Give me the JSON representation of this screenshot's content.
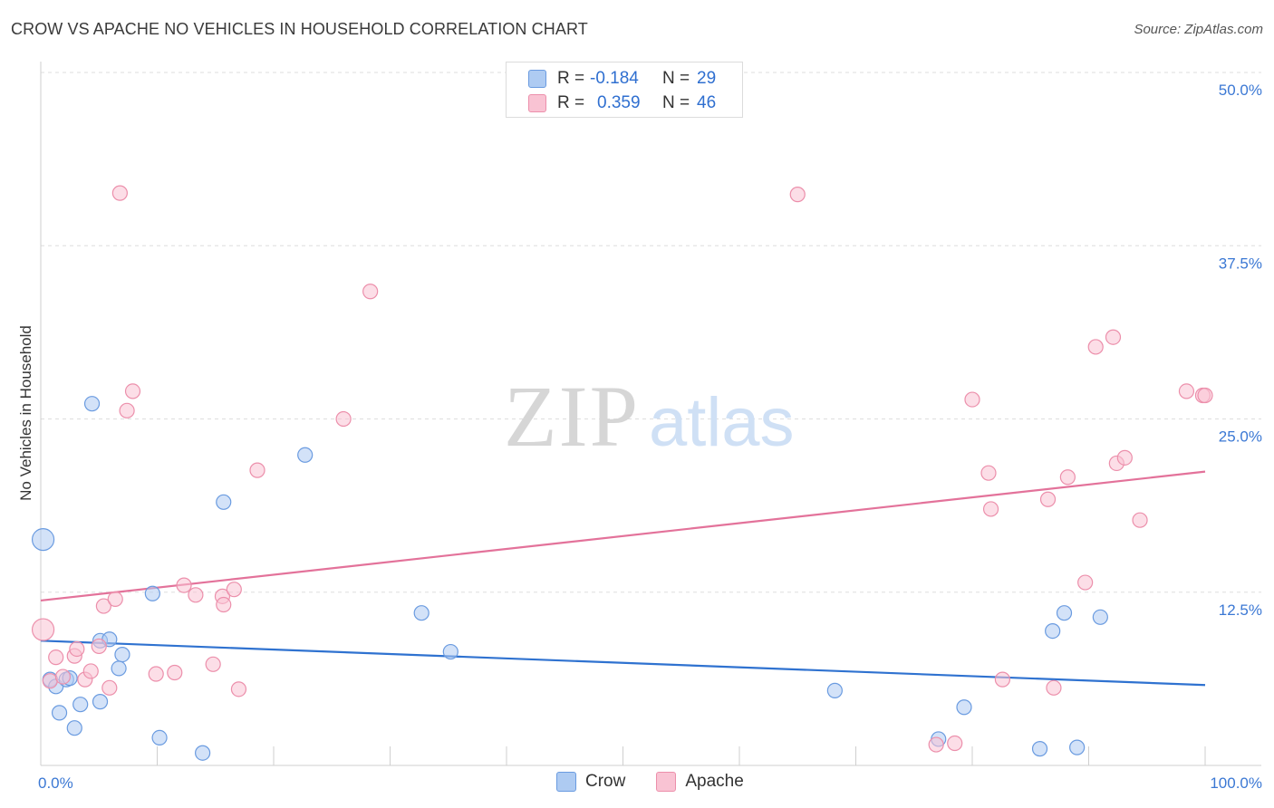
{
  "title": "CROW VS APACHE NO VEHICLES IN HOUSEHOLD CORRELATION CHART",
  "source": "Source: ZipAtlas.com",
  "watermark": {
    "zip": "ZIP",
    "atlas": "atlas"
  },
  "legend_top": {
    "rows": [
      {
        "series": "Crow",
        "r_label": "R =",
        "r_value": "-0.184",
        "n_label": "N =",
        "n_value": "29"
      },
      {
        "series": "Apache",
        "r_label": "R =",
        "r_value": "0.359",
        "n_label": "N =",
        "n_value": "46"
      }
    ]
  },
  "legend_bottom": {
    "crow": "Crow",
    "apache": "Apache"
  },
  "colors": {
    "crow_fill": "#aecbf2",
    "crow_stroke": "#6a9be0",
    "crow_line": "#2f72d0",
    "apache_fill": "#f9c3d3",
    "apache_stroke": "#ec8fab",
    "apache_line": "#e3729a",
    "tick_label": "#3b78d4",
    "grid": "#dedede"
  },
  "chart_data": {
    "type": "scatter",
    "title": "CROW VS APACHE NO VEHICLES IN HOUSEHOLD CORRELATION CHART",
    "xlabel": "",
    "ylabel": "No Vehicles in Household",
    "xlim": [
      0,
      100
    ],
    "ylim": [
      0,
      50
    ],
    "x_tick_labels": [
      "0.0%",
      "100.0%"
    ],
    "y_ticks": [
      12.5,
      25.0,
      37.5,
      50.0
    ],
    "y_tick_labels": [
      "12.5%",
      "25.0%",
      "37.5%",
      "50.0%"
    ],
    "grid": true,
    "legend": "top-center",
    "series": [
      {
        "name": "Crow",
        "r": -0.184,
        "n": 29,
        "trend": {
          "x": [
            0,
            100
          ],
          "y": [
            9.0,
            5.8
          ]
        },
        "points": [
          {
            "x": 0.2,
            "y": 16.3,
            "big": true
          },
          {
            "x": 0.8,
            "y": 6.2
          },
          {
            "x": 1.3,
            "y": 5.7
          },
          {
            "x": 1.6,
            "y": 3.8
          },
          {
            "x": 2.2,
            "y": 6.2
          },
          {
            "x": 2.5,
            "y": 6.3
          },
          {
            "x": 2.9,
            "y": 2.7
          },
          {
            "x": 3.4,
            "y": 4.4
          },
          {
            "x": 4.4,
            "y": 26.1
          },
          {
            "x": 5.1,
            "y": 4.6
          },
          {
            "x": 5.1,
            "y": 9.0
          },
          {
            "x": 5.9,
            "y": 9.1
          },
          {
            "x": 6.7,
            "y": 7.0
          },
          {
            "x": 7.0,
            "y": 8.0
          },
          {
            "x": 9.6,
            "y": 12.4
          },
          {
            "x": 10.2,
            "y": 2.0
          },
          {
            "x": 13.9,
            "y": 0.9
          },
          {
            "x": 15.7,
            "y": 19.0
          },
          {
            "x": 22.7,
            "y": 22.4
          },
          {
            "x": 32.7,
            "y": 11.0
          },
          {
            "x": 35.2,
            "y": 8.2
          },
          {
            "x": 68.2,
            "y": 5.4
          },
          {
            "x": 77.1,
            "y": 1.9
          },
          {
            "x": 79.3,
            "y": 4.2
          },
          {
            "x": 85.8,
            "y": 1.2
          },
          {
            "x": 86.9,
            "y": 9.7
          },
          {
            "x": 87.9,
            "y": 11.0
          },
          {
            "x": 89.0,
            "y": 1.3
          },
          {
            "x": 91.0,
            "y": 10.7
          }
        ]
      },
      {
        "name": "Apache",
        "r": 0.359,
        "n": 46,
        "trend": {
          "x": [
            0,
            100
          ],
          "y": [
            11.9,
            21.2
          ]
        },
        "points": [
          {
            "x": 0.2,
            "y": 9.8,
            "big": true
          },
          {
            "x": 0.8,
            "y": 6.1
          },
          {
            "x": 1.3,
            "y": 7.8
          },
          {
            "x": 1.9,
            "y": 6.4
          },
          {
            "x": 2.9,
            "y": 7.9
          },
          {
            "x": 3.1,
            "y": 8.4
          },
          {
            "x": 3.8,
            "y": 6.2
          },
          {
            "x": 4.3,
            "y": 6.8
          },
          {
            "x": 5.0,
            "y": 8.6
          },
          {
            "x": 5.4,
            "y": 11.5
          },
          {
            "x": 5.9,
            "y": 5.6
          },
          {
            "x": 6.4,
            "y": 12.0
          },
          {
            "x": 6.8,
            "y": 41.3
          },
          {
            "x": 7.4,
            "y": 25.6
          },
          {
            "x": 7.9,
            "y": 27.0
          },
          {
            "x": 9.9,
            "y": 6.6
          },
          {
            "x": 11.5,
            "y": 6.7
          },
          {
            "x": 12.3,
            "y": 13.0
          },
          {
            "x": 13.3,
            "y": 12.3
          },
          {
            "x": 14.8,
            "y": 7.3
          },
          {
            "x": 15.6,
            "y": 12.2
          },
          {
            "x": 15.7,
            "y": 11.6
          },
          {
            "x": 16.6,
            "y": 12.7
          },
          {
            "x": 17.0,
            "y": 5.5
          },
          {
            "x": 18.6,
            "y": 21.3
          },
          {
            "x": 26.0,
            "y": 25.0
          },
          {
            "x": 28.3,
            "y": 34.2
          },
          {
            "x": 65.0,
            "y": 41.2
          },
          {
            "x": 76.9,
            "y": 1.5
          },
          {
            "x": 78.5,
            "y": 1.6
          },
          {
            "x": 80.0,
            "y": 26.4
          },
          {
            "x": 81.4,
            "y": 21.1
          },
          {
            "x": 81.6,
            "y": 18.5
          },
          {
            "x": 82.6,
            "y": 6.2
          },
          {
            "x": 86.5,
            "y": 19.2
          },
          {
            "x": 87.0,
            "y": 5.6
          },
          {
            "x": 88.2,
            "y": 20.8
          },
          {
            "x": 89.7,
            "y": 13.2
          },
          {
            "x": 90.6,
            "y": 30.2
          },
          {
            "x": 92.1,
            "y": 30.9
          },
          {
            "x": 92.4,
            "y": 21.8
          },
          {
            "x": 93.1,
            "y": 22.2
          },
          {
            "x": 94.4,
            "y": 17.7
          },
          {
            "x": 98.4,
            "y": 27.0
          },
          {
            "x": 99.8,
            "y": 26.7
          },
          {
            "x": 100.0,
            "y": 26.7
          }
        ]
      }
    ]
  }
}
